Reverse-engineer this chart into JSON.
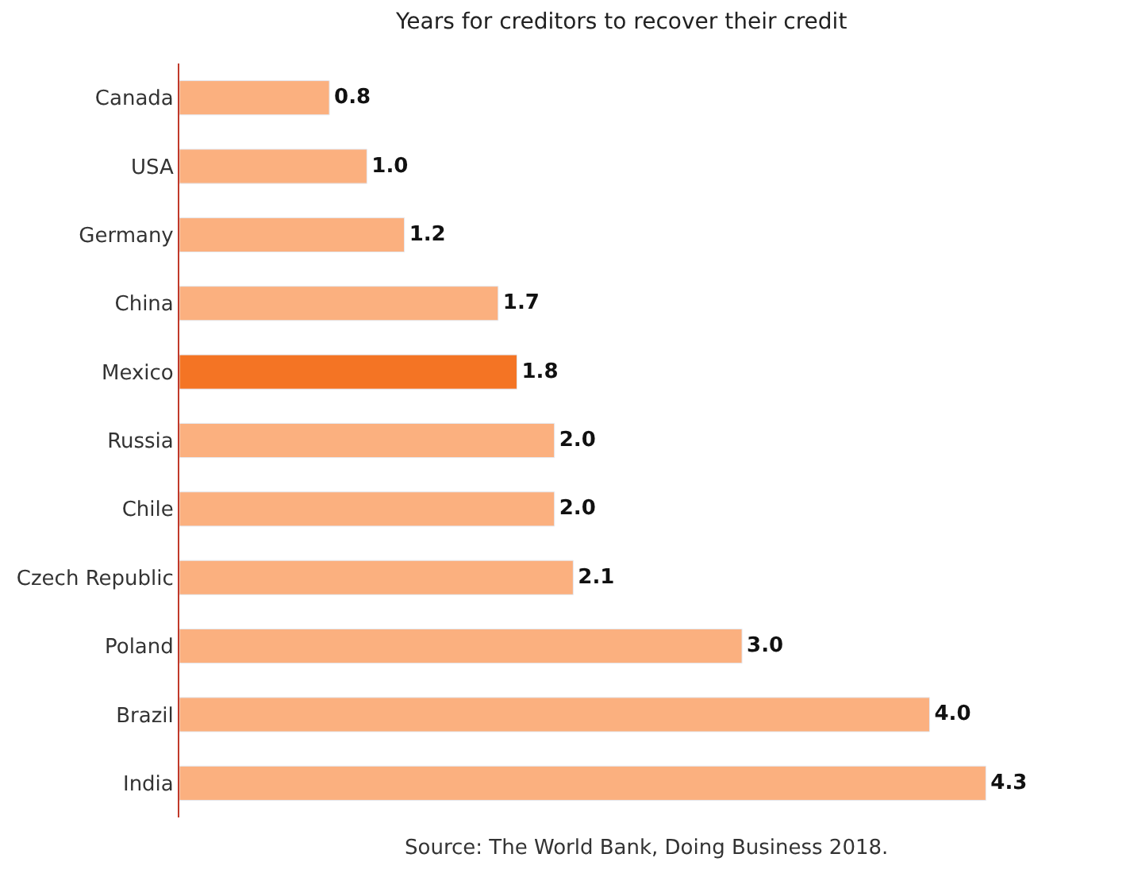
{
  "chart_data": {
    "type": "bar",
    "orientation": "horizontal",
    "title": "Years for creditors to recover their credit",
    "categories": [
      "Canada",
      "USA",
      "Germany",
      "China",
      "Mexico",
      "Russia",
      "Chile",
      "Czech Republic",
      "Poland",
      "Brazil",
      "India"
    ],
    "values": [
      0.8,
      1.0,
      1.2,
      1.7,
      1.8,
      2.0,
      2.0,
      2.1,
      3.0,
      4.0,
      4.3
    ],
    "value_labels": [
      "0.8",
      "1.0",
      "1.2",
      "1.7",
      "1.8",
      "2.0",
      "2.0",
      "2.1",
      "3.0",
      "4.0",
      "4.3"
    ],
    "colors": [
      "#fbb07f",
      "#fbb07f",
      "#fbb07f",
      "#fbb07f",
      "#f47424",
      "#fbb07f",
      "#fbb07f",
      "#fbb07f",
      "#fbb07f",
      "#fbb07f",
      "#fbb07f"
    ],
    "annotations": [
      "Source: The World Bank, Doing Business 2018."
    ],
    "legend": false
  }
}
